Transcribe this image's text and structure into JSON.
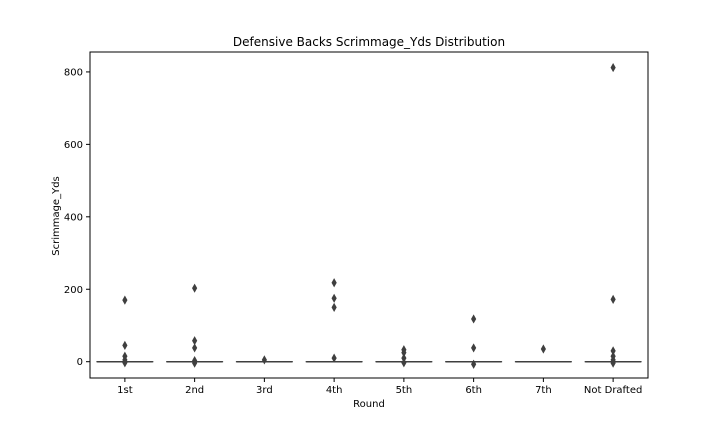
{
  "chart_data": {
    "type": "boxplot",
    "title": "Defensive Backs Scrimmage_Yds Distribution",
    "xlabel": "Round",
    "ylabel": "Scrimmage_Yds",
    "ylim": [
      -45,
      855
    ],
    "yticks": [
      0,
      200,
      400,
      600,
      800
    ],
    "grid": false,
    "categories": [
      "1st",
      "2nd",
      "3rd",
      "4th",
      "5th",
      "6th",
      "7th",
      "Not Drafted"
    ],
    "boxes": [
      {
        "category": "1st",
        "q1": 0,
        "median": 0,
        "q3": 0,
        "whisker_low": 0,
        "whisker_high": 0,
        "outliers": [
          170,
          45,
          15,
          5,
          -3
        ]
      },
      {
        "category": "2nd",
        "q1": 0,
        "median": 0,
        "q3": 0,
        "whisker_low": 0,
        "whisker_high": 0,
        "outliers": [
          203,
          58,
          38,
          3,
          -4
        ]
      },
      {
        "category": "3rd",
        "q1": 0,
        "median": 0,
        "q3": 0,
        "whisker_low": 0,
        "whisker_high": 0,
        "outliers": [
          5
        ]
      },
      {
        "category": "4th",
        "q1": 0,
        "median": 0,
        "q3": 0,
        "whisker_low": 0,
        "whisker_high": 0,
        "outliers": [
          218,
          175,
          150,
          10
        ]
      },
      {
        "category": "5th",
        "q1": 0,
        "median": 0,
        "q3": 0,
        "whisker_low": 0,
        "whisker_high": 0,
        "outliers": [
          33,
          25,
          10,
          -3
        ]
      },
      {
        "category": "6th",
        "q1": 0,
        "median": 0,
        "q3": 0,
        "whisker_low": 0,
        "whisker_high": 0,
        "outliers": [
          118,
          38,
          -7
        ]
      },
      {
        "category": "7th",
        "q1": 0,
        "median": 0,
        "q3": 0,
        "whisker_low": 0,
        "whisker_high": 0,
        "outliers": [
          35
        ]
      },
      {
        "category": "Not Drafted",
        "q1": 0,
        "median": 0,
        "q3": 0,
        "whisker_low": 0,
        "whisker_high": 0,
        "outliers": [
          812,
          172,
          30,
          15,
          5,
          -4
        ]
      }
    ],
    "colors": {
      "line": "#3f3f3f",
      "marker": "#3f3f3f",
      "frame": "#000000"
    }
  }
}
